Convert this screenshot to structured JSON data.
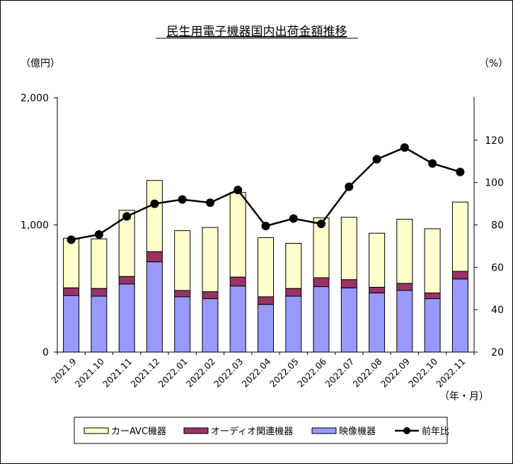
{
  "chart_data": {
    "type": "bar",
    "title": "民生用電子機器国内出荷金額推移",
    "left_unit": "（億円）",
    "right_unit": "（%）",
    "x_unit": "（年・月）",
    "categories": [
      "2021.9",
      "2021.10",
      "2021.11",
      "2021.12",
      "2022.01",
      "2022.02",
      "2022.03",
      "2022.04",
      "2022.05",
      "2022.06",
      "2022.07",
      "2022.08",
      "2022.09",
      "2022.10",
      "2022.11"
    ],
    "left_axis": {
      "min": 0,
      "max": 2000,
      "ticks": [
        0,
        1000,
        2000
      ],
      "tick_labels": [
        "0",
        "1,000",
        "2,000"
      ]
    },
    "right_axis": {
      "min": 20,
      "max": 140,
      "ticks": [
        20,
        40,
        60,
        80,
        100,
        120
      ],
      "tick_labels": [
        "20",
        "40",
        "60",
        "80",
        "100",
        "120"
      ]
    },
    "series": [
      {
        "name": "映像機器",
        "kind": "bar",
        "axis": "left",
        "color": "#9999ff",
        "values": [
          445,
          440,
          535,
          710,
          435,
          420,
          520,
          375,
          440,
          515,
          505,
          465,
          485,
          420,
          575
        ]
      },
      {
        "name": "オーディオ関連機器",
        "kind": "bar",
        "axis": "left",
        "color": "#993366",
        "values": [
          60,
          60,
          60,
          80,
          50,
          55,
          70,
          60,
          60,
          70,
          65,
          45,
          55,
          45,
          60
        ]
      },
      {
        "name": "カーAVC機器",
        "kind": "bar",
        "axis": "left",
        "color": "#ffffcc",
        "values": [
          390,
          390,
          520,
          560,
          470,
          505,
          665,
          465,
          355,
          470,
          490,
          425,
          505,
          505,
          545
        ]
      },
      {
        "name": "前年比",
        "kind": "line",
        "axis": "right",
        "color": "#000000",
        "values": [
          73,
          75.5,
          84,
          90,
          92,
          90.5,
          96.5,
          79.5,
          83,
          80.5,
          98,
          111,
          116.5,
          109,
          105
        ]
      }
    ],
    "legend": {
      "position": "bottom",
      "items": [
        {
          "label": "カーAVC機器",
          "series": "カーAVC機器"
        },
        {
          "label": "オーディオ関連機器",
          "series": "オーディオ関連機器"
        },
        {
          "label": "映像機器",
          "series": "映像機器"
        },
        {
          "label": "前年比",
          "series": "前年比"
        }
      ]
    },
    "grid": false
  }
}
